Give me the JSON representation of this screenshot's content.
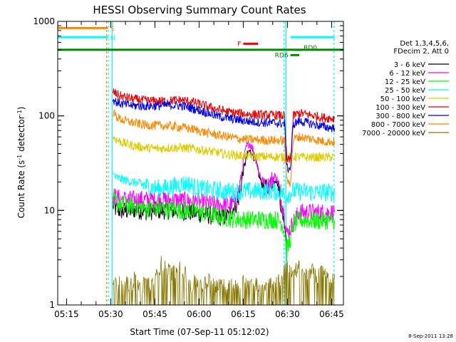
{
  "chart_data": {
    "type": "line",
    "title": "HESSI Observing Summary Count Rates",
    "xlabel": "Start Time (07-Sep-11 05:12:02)",
    "ylabel_main": "Count Rate (s",
    "ylabel_sup": "-1",
    "ylabel_mid": " detector",
    "ylabel_sup2": "-1",
    "ylabel_end": ")",
    "yscale": "log",
    "ylim": [
      1,
      1000
    ],
    "xlim_minutes": [
      0,
      97
    ],
    "x_ticks": [
      {
        "label": "05:15",
        "min": 3
      },
      {
        "label": "05:30",
        "min": 18
      },
      {
        "label": "05:45",
        "min": 33
      },
      {
        "label": "06:00",
        "min": 48
      },
      {
        "label": "06:15",
        "min": 63
      },
      {
        "label": "06:30",
        "min": 78
      },
      {
        "label": "06:45",
        "min": 93
      }
    ],
    "y_ticks": [
      {
        "label": "1",
        "value": 1
      },
      {
        "label": "10",
        "value": 10
      },
      {
        "label": "100",
        "value": 100
      },
      {
        "label": "1000",
        "value": 1000
      }
    ],
    "legend_header": [
      "Det 1,3,4,5,6,",
      "FDecim 2, Att 0"
    ],
    "series": [
      {
        "name": "3 - 6 keV",
        "color": "#000000",
        "points": [
          [
            18.7,
            11.5
          ],
          [
            19.5,
            10.5
          ],
          [
            22,
            9.8
          ],
          [
            26,
            10.2
          ],
          [
            30,
            9.8
          ],
          [
            34,
            10
          ],
          [
            38,
            10
          ],
          [
            42,
            9.8
          ],
          [
            46,
            9.5
          ],
          [
            50,
            9.0
          ],
          [
            54,
            8.6
          ],
          [
            56,
            8.5
          ],
          [
            58,
            8.8
          ],
          [
            60,
            11
          ],
          [
            61,
            12
          ],
          [
            62,
            16
          ],
          [
            63,
            26
          ],
          [
            64,
            36
          ],
          [
            65,
            42
          ],
          [
            66,
            41
          ],
          [
            67,
            35
          ],
          [
            68,
            26
          ],
          [
            69,
            20
          ],
          [
            70,
            18
          ],
          [
            71,
            17
          ],
          [
            72,
            18
          ],
          [
            73,
            20
          ],
          [
            74,
            22
          ],
          [
            75,
            18
          ],
          [
            76,
            10
          ],
          [
            77,
            8
          ],
          [
            77.8,
            4.5
          ]
        ]
      },
      {
        "name": "6 - 12 keV",
        "color": "#ff00ff",
        "points": [
          [
            18.7,
            14.5
          ],
          [
            20,
            13.5
          ],
          [
            24,
            13
          ],
          [
            30,
            13
          ],
          [
            34,
            13
          ],
          [
            40,
            12.8
          ],
          [
            46,
            12.5
          ],
          [
            50,
            12
          ],
          [
            54,
            11.3
          ],
          [
            58,
            11.5
          ],
          [
            60,
            12
          ],
          [
            61,
            14
          ],
          [
            62,
            20
          ],
          [
            63,
            32
          ],
          [
            64,
            46
          ],
          [
            65,
            52
          ],
          [
            66,
            47
          ],
          [
            67,
            38
          ],
          [
            68,
            28
          ],
          [
            69,
            22
          ],
          [
            70,
            20
          ],
          [
            71,
            18
          ],
          [
            72,
            19
          ],
          [
            73,
            22
          ],
          [
            74,
            23
          ],
          [
            75,
            19
          ],
          [
            76,
            12
          ],
          [
            77,
            9
          ],
          [
            77.8,
            5.5
          ],
          [
            80.5,
            8
          ],
          [
            82,
            9.5
          ],
          [
            85,
            9.5
          ],
          [
            90,
            9.5
          ],
          [
            94,
            9.5
          ]
        ]
      },
      {
        "name": "12 - 25 keV",
        "color": "#00ff00",
        "points": [
          [
            18.7,
            12.5
          ],
          [
            22,
            11.5
          ],
          [
            26,
            11
          ],
          [
            30,
            10.5
          ],
          [
            34,
            10.5
          ],
          [
            40,
            10.2
          ],
          [
            46,
            9.8
          ],
          [
            50,
            9.3
          ],
          [
            54,
            8.8
          ],
          [
            56,
            8.5
          ],
          [
            58,
            8.3
          ],
          [
            62,
            8
          ],
          [
            66,
            8
          ],
          [
            70,
            8
          ],
          [
            74,
            8
          ],
          [
            76,
            7.5
          ],
          [
            77,
            6
          ],
          [
            77.8,
            3.7
          ],
          [
            79,
            5
          ],
          [
            80,
            7
          ],
          [
            82,
            8
          ],
          [
            86,
            7.8
          ],
          [
            90,
            7.8
          ],
          [
            94,
            7.8
          ]
        ]
      },
      {
        "name": "25 - 50 keV",
        "color": "#00ffff",
        "points": [
          [
            18.7,
            24
          ],
          [
            20,
            22
          ],
          [
            24,
            20.5
          ],
          [
            28,
            19
          ],
          [
            32,
            17.5
          ],
          [
            34,
            17
          ],
          [
            38,
            17.5
          ],
          [
            42,
            19
          ],
          [
            44,
            19.5
          ],
          [
            46,
            18
          ],
          [
            48,
            17
          ],
          [
            52,
            16.5
          ],
          [
            56,
            16
          ],
          [
            60,
            15.8
          ],
          [
            64,
            16
          ],
          [
            68,
            16
          ],
          [
            72,
            16
          ],
          [
            76,
            15.8
          ],
          [
            77,
            14
          ],
          [
            77.8,
            14.5
          ],
          [
            80,
            16
          ],
          [
            84,
            15.8
          ],
          [
            88,
            15.5
          ],
          [
            94,
            15.5
          ]
        ]
      },
      {
        "name": "50 - 100 keV",
        "color": "#ddcc00",
        "points": [
          [
            18.7,
            60
          ],
          [
            20,
            56
          ],
          [
            22,
            52
          ],
          [
            26,
            48
          ],
          [
            30,
            46
          ],
          [
            34,
            45
          ],
          [
            38,
            46
          ],
          [
            42,
            46
          ],
          [
            46,
            45
          ],
          [
            50,
            43
          ],
          [
            54,
            41
          ],
          [
            58,
            39
          ],
          [
            62,
            38
          ],
          [
            66,
            37.5
          ],
          [
            70,
            37
          ],
          [
            74,
            37
          ],
          [
            77,
            36.5
          ],
          [
            77.8,
            36
          ],
          [
            80,
            37
          ],
          [
            84,
            36.5
          ],
          [
            88,
            36.5
          ],
          [
            94,
            36.5
          ]
        ]
      },
      {
        "name": "100 - 300 keV",
        "color": "#ee0000",
        "points": [
          [
            18.7,
            180
          ],
          [
            20,
            170
          ],
          [
            22,
            160
          ],
          [
            26,
            150
          ],
          [
            30,
            145
          ],
          [
            34,
            143
          ],
          [
            38,
            145
          ],
          [
            42,
            147
          ],
          [
            46,
            140
          ],
          [
            50,
            128
          ],
          [
            54,
            118
          ],
          [
            58,
            110
          ],
          [
            62,
            106
          ],
          [
            66,
            104
          ],
          [
            70,
            102
          ],
          [
            74,
            102
          ],
          [
            77,
            100
          ],
          [
            77.8,
            34
          ],
          [
            79,
            34
          ],
          [
            80,
            100
          ],
          [
            82,
            107
          ],
          [
            86,
            102
          ],
          [
            90,
            96
          ],
          [
            94,
            94
          ]
        ]
      },
      {
        "name": "300 - 800 keV",
        "color": "#0000ee",
        "points": [
          [
            18.7,
            150
          ],
          [
            20,
            140
          ],
          [
            22,
            133
          ],
          [
            26,
            128
          ],
          [
            30,
            127
          ],
          [
            34,
            128
          ],
          [
            38,
            130
          ],
          [
            42,
            128
          ],
          [
            46,
            120
          ],
          [
            50,
            110
          ],
          [
            54,
            100
          ],
          [
            58,
            94
          ],
          [
            62,
            90
          ],
          [
            66,
            87
          ],
          [
            70,
            85
          ],
          [
            74,
            84
          ],
          [
            77,
            83
          ],
          [
            77.8,
            28
          ],
          [
            79,
            28
          ],
          [
            80,
            82
          ],
          [
            82,
            88
          ],
          [
            86,
            83
          ],
          [
            90,
            77
          ],
          [
            94,
            74
          ]
        ]
      },
      {
        "name": "800 - 7000 keV",
        "color": "#ff8800",
        "points": [
          [
            18.7,
            110
          ],
          [
            20,
            98
          ],
          [
            22,
            90
          ],
          [
            26,
            84
          ],
          [
            30,
            80
          ],
          [
            34,
            79
          ],
          [
            38,
            78
          ],
          [
            42,
            76
          ],
          [
            46,
            72
          ],
          [
            50,
            67
          ],
          [
            54,
            63
          ],
          [
            58,
            60
          ],
          [
            62,
            57
          ],
          [
            66,
            56
          ],
          [
            70,
            55.5
          ],
          [
            74,
            55
          ],
          [
            77,
            55
          ],
          [
            77.8,
            20
          ],
          [
            79,
            20
          ],
          [
            80,
            57
          ],
          [
            82,
            60
          ],
          [
            86,
            57
          ],
          [
            90,
            54
          ],
          [
            94,
            53
          ]
        ]
      },
      {
        "name": "7000 - 20000 keV",
        "color": "#887700",
        "points": [
          [
            18.7,
            1.5
          ],
          [
            20,
            1.8
          ],
          [
            22,
            2
          ],
          [
            24,
            1.6
          ],
          [
            26,
            1.9
          ],
          [
            28,
            1.5
          ],
          [
            30,
            1.8
          ],
          [
            32,
            1.7
          ],
          [
            34,
            2.1
          ],
          [
            35,
            2.8
          ],
          [
            37,
            2.5
          ],
          [
            39,
            2.2
          ],
          [
            41,
            2.6
          ],
          [
            43,
            2.3
          ],
          [
            45,
            1.6
          ],
          [
            47,
            1.8
          ],
          [
            49,
            1.5
          ],
          [
            51,
            1.9
          ],
          [
            53,
            1.6
          ],
          [
            55,
            1.8
          ],
          [
            57,
            1.5
          ],
          [
            59,
            1.7
          ],
          [
            61,
            1.5
          ],
          [
            63,
            1.8
          ],
          [
            65,
            1.6
          ],
          [
            67,
            1.8
          ],
          [
            69,
            1.5
          ],
          [
            71,
            1.8
          ],
          [
            73,
            1.6
          ],
          [
            75,
            1.8
          ],
          [
            77,
            2.4
          ],
          [
            78,
            2.8
          ],
          [
            80,
            2.2
          ],
          [
            82,
            2.5
          ],
          [
            84,
            2.1
          ],
          [
            86,
            2.4
          ],
          [
            88,
            2.0
          ],
          [
            90,
            2.3
          ],
          [
            92,
            2.0
          ],
          [
            94,
            2.1
          ]
        ]
      }
    ],
    "attenuator_bars": [
      {
        "label": "S",
        "color": "#ff8800",
        "y": 850,
        "x_start": 0,
        "x_end": 17
      },
      {
        "label": "N",
        "color": "#00ffff",
        "y": 680,
        "x_start": 0,
        "x_end": 17
      },
      {
        "label": "",
        "color": "#008800",
        "y": 500,
        "x_start": 0,
        "x_end": 97
      }
    ],
    "flags": [
      {
        "label": "F",
        "color": "#ee0000",
        "y": 580,
        "x_start": 63,
        "x_end": 68
      },
      {
        "label": "RD0",
        "color": "#008800",
        "y": 500,
        "x_start": 80,
        "x_end": 83
      },
      {
        "label": "RD6",
        "color": "#008800",
        "y": 440,
        "x_start": 79,
        "x_end": 82
      }
    ],
    "footer_date": "8-Sep-2011 13:28"
  }
}
